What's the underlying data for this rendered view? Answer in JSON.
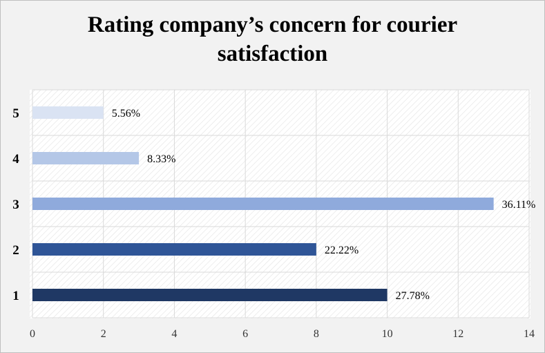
{
  "chart_data": {
    "type": "bar",
    "orientation": "horizontal",
    "title": "Rating company’s concern for courier satisfaction",
    "title_lines": [
      "Rating company’s concern for",
      "courier",
      "satisfaction"
    ],
    "categories": [
      "1",
      "2",
      "3",
      "4",
      "5"
    ],
    "values": [
      10,
      8,
      13,
      3,
      2
    ],
    "data_labels": [
      "27.78%",
      "22.22%",
      "36.11%",
      "8.33%",
      "5.56%"
    ],
    "bar_colors": [
      "#1f3864",
      "#2f5597",
      "#8faadc",
      "#b4c7e7",
      "#dae3f3"
    ],
    "xlim": [
      0,
      14
    ],
    "x_ticks": [
      "0",
      "2",
      "4",
      "6",
      "8",
      "10",
      "12",
      "14"
    ],
    "xlabel": "",
    "ylabel": "",
    "grid": true,
    "legend": "none"
  }
}
